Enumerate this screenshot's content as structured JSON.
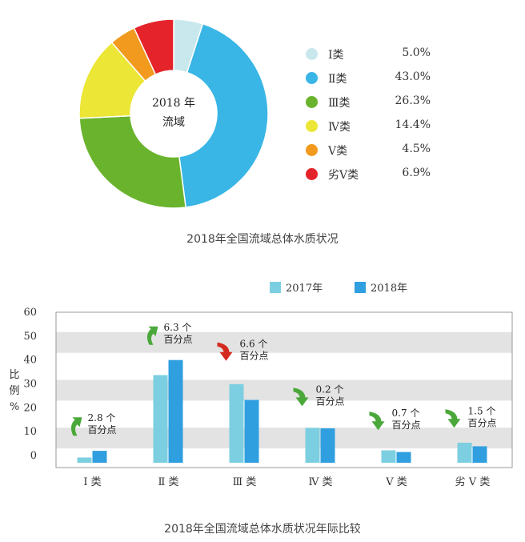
{
  "chart_data": [
    {
      "type": "pie",
      "center_text": [
        "2018 年",
        "流域"
      ],
      "labels": [
        "Ⅰ类",
        "Ⅱ类",
        "Ⅲ类",
        "Ⅳ类",
        "Ⅴ类",
        "劣Ⅴ类"
      ],
      "values": [
        5.0,
        43.0,
        26.3,
        14.4,
        4.5,
        6.9
      ],
      "value_labels": [
        "5.0%",
        "43.0%",
        "26.3%",
        "14.4%",
        "4.5%",
        "6.9%"
      ],
      "colors": [
        "#c9e8ee",
        "#39b5e6",
        "#6ab42d",
        "#ece636",
        "#f29a1e",
        "#e5232a"
      ],
      "title": "2018年全国流域总体水质状况",
      "legend": "right"
    },
    {
      "type": "bar",
      "title": "2018年全国流域总体水质状况年际比较",
      "categories": [
        "Ⅰ 类",
        "Ⅱ 类",
        "Ⅲ 类",
        "Ⅳ 类",
        "Ⅴ 类",
        "劣 Ⅴ 类"
      ],
      "series": [
        {
          "name": "2017年",
          "color": "#7ccfe0",
          "values": [
            2.2,
            36.7,
            32.9,
            14.6,
            5.2,
            8.4
          ]
        },
        {
          "name": "2018年",
          "color": "#2f9fe0",
          "values": [
            5.0,
            43.0,
            26.3,
            14.4,
            4.5,
            6.9
          ]
        }
      ],
      "ylabel": [
        "比",
        "例",
        "%"
      ],
      "yticks": [
        "0",
        "10",
        "20",
        "30",
        "40",
        "50",
        "60"
      ],
      "ylim": [
        -5,
        60
      ],
      "grid_bands": true,
      "legend": "top",
      "annotations": [
        {
          "value": "2.8 个",
          "unit": "百分点",
          "direction": "up"
        },
        {
          "value": "6.3 个",
          "unit": "百分点",
          "direction": "up"
        },
        {
          "value": "6.6 个",
          "unit": "百分点",
          "direction": "down"
        },
        {
          "value": "0.2 个",
          "unit": "百分点",
          "direction": "down"
        },
        {
          "value": "0.7 个",
          "unit": "百分点",
          "direction": "down"
        },
        {
          "value": "1.5 个",
          "unit": "百分点",
          "direction": "down"
        }
      ],
      "arrow_colors": {
        "up": "#4aa83a",
        "down": "#d42a1f",
        "down_green": "#4aa83a"
      }
    }
  ]
}
